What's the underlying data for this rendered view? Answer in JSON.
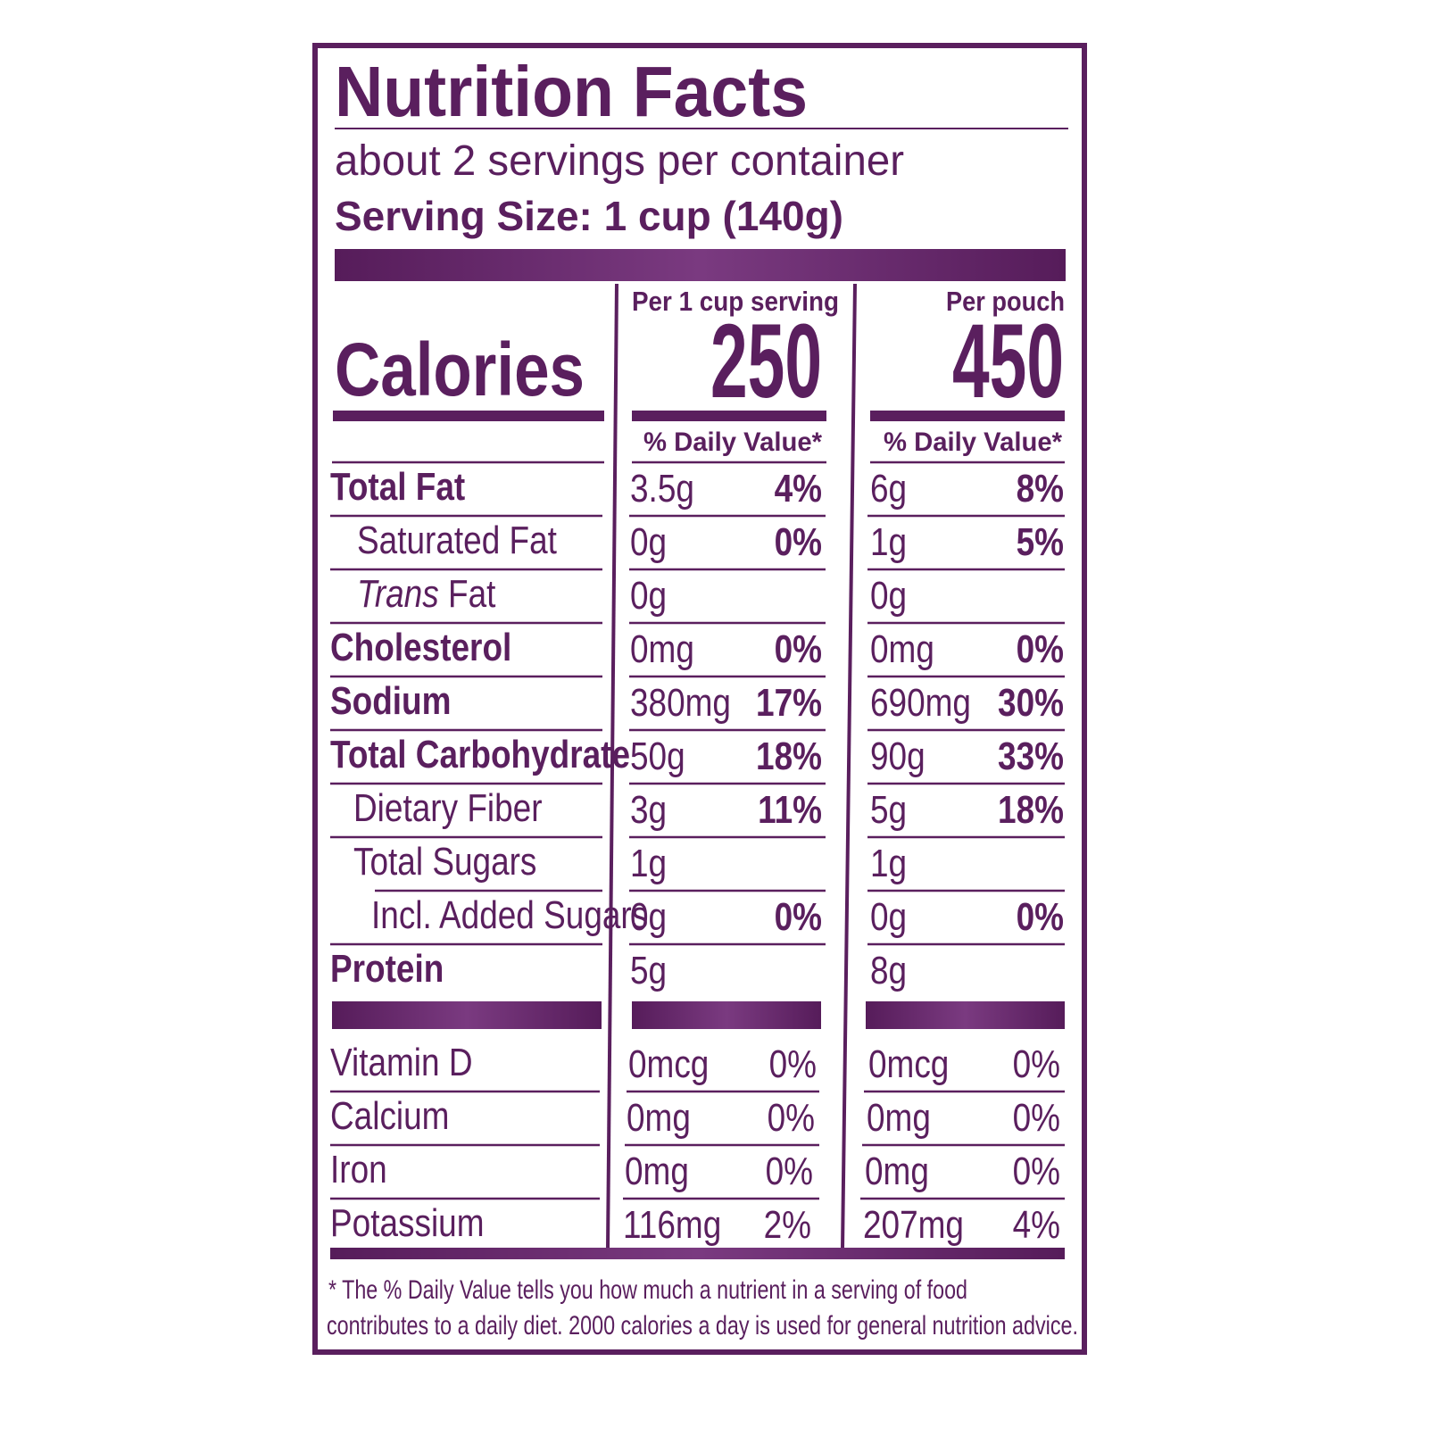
{
  "title": "Nutrition Facts",
  "servings": "about 2 servings per container",
  "serving_size": "Serving Size: 1 cup (140g)",
  "calories_label": "Calories",
  "columns": [
    {
      "header": "Per 1 cup serving",
      "calories": "250",
      "dv_header": "% Daily Value*"
    },
    {
      "header": "Per pouch",
      "calories": "450",
      "dv_header": "% Daily Value*"
    }
  ],
  "nutrients": [
    {
      "name": "Total Fat",
      "bold": true,
      "values": [
        {
          "amount": "3.5g",
          "dv": "4%"
        },
        {
          "amount": "6g",
          "dv": "8%"
        }
      ]
    },
    {
      "name": "Saturated Fat",
      "bold": false,
      "values": [
        {
          "amount": "0g",
          "dv": "0%"
        },
        {
          "amount": "1g",
          "dv": "5%"
        }
      ]
    },
    {
      "name_italic": "Trans",
      "name": "Fat",
      "bold": false,
      "values": [
        {
          "amount": "0g"
        },
        {
          "amount": "0g"
        }
      ]
    },
    {
      "name": "Cholesterol",
      "bold": true,
      "values": [
        {
          "amount": "0mg",
          "dv": "0%"
        },
        {
          "amount": "0mg",
          "dv": "0%"
        }
      ]
    },
    {
      "name": "Sodium",
      "bold": true,
      "values": [
        {
          "amount": "380mg",
          "dv": "17%"
        },
        {
          "amount": "690mg",
          "dv": "30%"
        }
      ]
    },
    {
      "name": "Total Carbohydrate",
      "bold": true,
      "values": [
        {
          "amount": "50g",
          "dv": "18%"
        },
        {
          "amount": "90g",
          "dv": "33%"
        }
      ]
    },
    {
      "name": "Dietary Fiber",
      "bold": false,
      "values": [
        {
          "amount": "3g",
          "dv": "11%"
        },
        {
          "amount": "5g",
          "dv": "18%"
        }
      ]
    },
    {
      "name": "Total Sugars",
      "bold": false,
      "values": [
        {
          "amount": "1g"
        },
        {
          "amount": "1g"
        }
      ]
    },
    {
      "name": "Incl. Added Sugars",
      "bold": false,
      "values": [
        {
          "amount": "0g",
          "dv": "0%"
        },
        {
          "amount": "0g",
          "dv": "0%"
        }
      ]
    },
    {
      "name": "Protein",
      "bold": true,
      "values": [
        {
          "amount": "5g"
        },
        {
          "amount": "8g"
        }
      ]
    }
  ],
  "vitamins": [
    {
      "name": "Vitamin D",
      "values": [
        {
          "amount": "0mcg",
          "dv": "0%"
        },
        {
          "amount": "0mcg",
          "dv": "0%"
        }
      ]
    },
    {
      "name": "Calcium",
      "values": [
        {
          "amount": "0mg",
          "dv": "0%"
        },
        {
          "amount": "0mg",
          "dv": "0%"
        }
      ]
    },
    {
      "name": "Iron",
      "values": [
        {
          "amount": "0mg",
          "dv": "0%"
        },
        {
          "amount": "0mg",
          "dv": "0%"
        }
      ]
    },
    {
      "name": "Potassium",
      "values": [
        {
          "amount": "116mg",
          "dv": "2%"
        },
        {
          "amount": "207mg",
          "dv": "4%"
        }
      ]
    }
  ],
  "footnote": [
    "* The % Daily Value tells you how much a nutrient in a serving of food",
    "contributes to a daily diet. 2000 calories a day is used for general nutrition advice."
  ]
}
